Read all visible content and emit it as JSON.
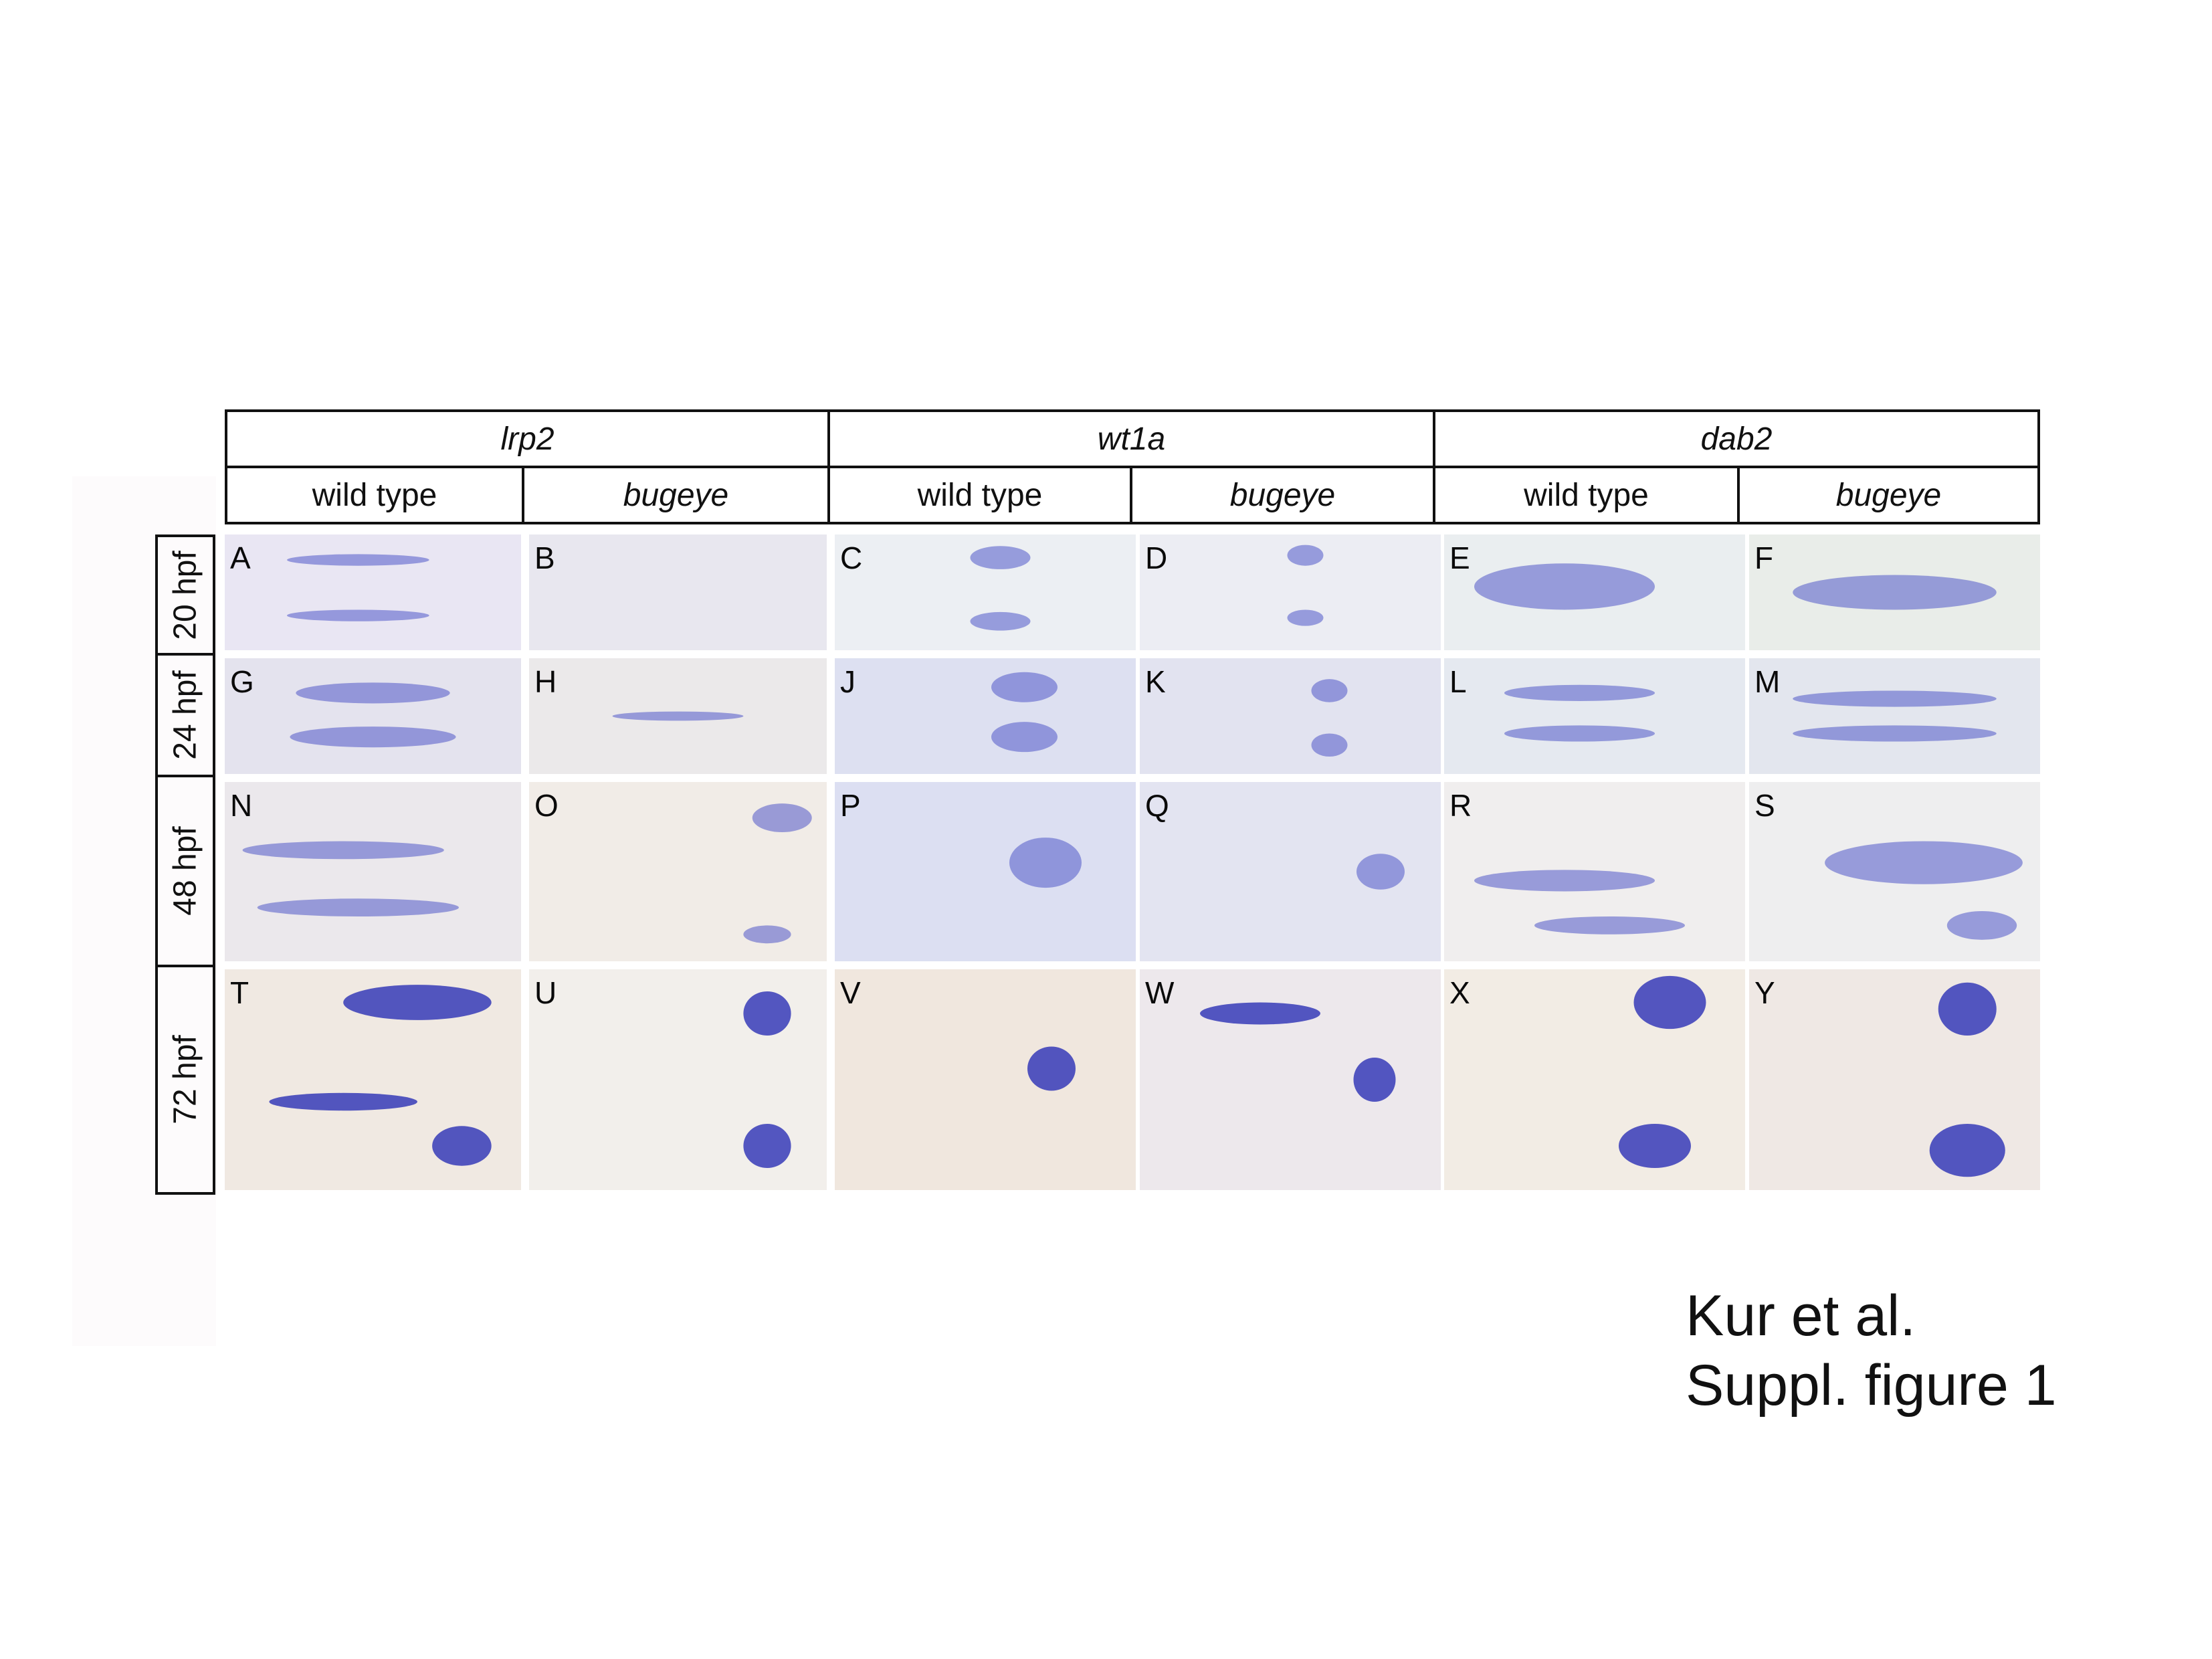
{
  "genes": [
    "lrp2",
    "wt1a",
    "dab2"
  ],
  "conditions": [
    {
      "label": "wild type",
      "italic": false
    },
    {
      "label": "bugeye",
      "italic": true
    },
    {
      "label": "wild type",
      "italic": false
    },
    {
      "label": "bugeye",
      "italic": true
    },
    {
      "label": "wild type",
      "italic": false
    },
    {
      "label": "bugeye",
      "italic": true
    }
  ],
  "timepoints": [
    "20 hpf",
    "24 hpf",
    "48 hpf",
    "72 hpf"
  ],
  "panel_letters": [
    [
      "A",
      "B",
      "C",
      "D",
      "E",
      "F"
    ],
    [
      "G",
      "H",
      "J",
      "K",
      "L",
      "M"
    ],
    [
      "N",
      "O",
      "P",
      "Q",
      "R",
      "S"
    ],
    [
      "T",
      "U",
      "V",
      "W",
      "X",
      "Y"
    ]
  ],
  "caption": {
    "line1": "Kur et al.",
    "line2": "Suppl. figure 1"
  }
}
